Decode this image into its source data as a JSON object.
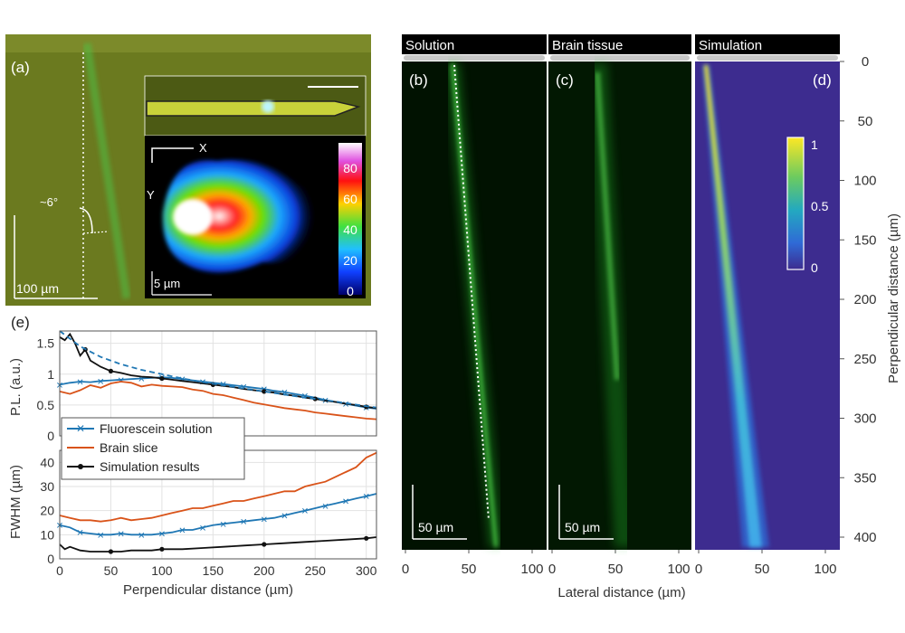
{
  "panel_a": {
    "label": "(a)",
    "angle_label": "~6°",
    "scale_label": "100 µm",
    "inset": {
      "x_label": "X",
      "y_label": "Y",
      "scale_label": "5 µm",
      "colorbar_ticks": [
        "80",
        "60",
        "40",
        "20",
        "0"
      ]
    }
  },
  "panels_bcd": {
    "headers": [
      "Solution",
      "Brain tissue",
      "Simulation"
    ],
    "labels": [
      "(b)",
      "(c)",
      "(d)"
    ],
    "scale_label_b": "50 µm",
    "scale_label_c": "50 µm",
    "colorbar_ticks": [
      "1",
      "0.5",
      "0"
    ],
    "x_ticks": [
      "0",
      "50",
      "100"
    ],
    "y_ticks": [
      "0",
      "50",
      "100",
      "150",
      "200",
      "250",
      "300",
      "350",
      "400"
    ],
    "xlabel": "Lateral distance (µm)",
    "ylabel": "Perpendicular distance (µm)",
    "colors": {
      "green": "#27c22d",
      "sim_bg": "#3d2c8f",
      "beam": "#3fa8e8"
    }
  },
  "chart_data": {
    "label": "(e)",
    "type": "line",
    "xlabel": "Perpendicular distance (µm)",
    "xlim": [
      0,
      310
    ],
    "x_ticks": [
      "0",
      "50",
      "100",
      "150",
      "200",
      "250",
      "300"
    ],
    "top": {
      "ylabel": "P.L. (a.u.)",
      "ylim": [
        0,
        1.7
      ],
      "y_ticks": [
        "0",
        "0.5",
        "1",
        "1.5"
      ],
      "series": [
        {
          "name": "Fluorescein solution",
          "color": "#1f77b4",
          "x": [
            0,
            10,
            20,
            30,
            40,
            50,
            60,
            70,
            80,
            90,
            100,
            110,
            120,
            130,
            140,
            150,
            160,
            170,
            180,
            190,
            200,
            210,
            220,
            230,
            240,
            250,
            260,
            270,
            280,
            290,
            300,
            310
          ],
          "y": [
            0.83,
            0.86,
            0.88,
            0.87,
            0.89,
            0.9,
            0.91,
            0.92,
            0.93,
            0.94,
            0.95,
            0.94,
            0.92,
            0.9,
            0.88,
            0.86,
            0.84,
            0.82,
            0.8,
            0.78,
            0.76,
            0.73,
            0.71,
            0.68,
            0.65,
            0.62,
            0.58,
            0.55,
            0.52,
            0.49,
            0.46,
            0.44
          ]
        },
        {
          "name": "Brain slice",
          "color": "#d95319",
          "x": [
            0,
            10,
            20,
            30,
            40,
            50,
            60,
            70,
            80,
            90,
            100,
            110,
            120,
            130,
            140,
            150,
            160,
            170,
            180,
            190,
            200,
            210,
            220,
            230,
            240,
            250,
            260,
            270,
            280,
            290,
            300,
            310
          ],
          "y": [
            0.72,
            0.68,
            0.74,
            0.82,
            0.78,
            0.85,
            0.88,
            0.86,
            0.8,
            0.83,
            0.81,
            0.8,
            0.79,
            0.75,
            0.73,
            0.68,
            0.66,
            0.62,
            0.58,
            0.54,
            0.51,
            0.48,
            0.45,
            0.43,
            0.41,
            0.38,
            0.36,
            0.34,
            0.32,
            0.3,
            0.28,
            0.27
          ]
        },
        {
          "name": "Simulation results",
          "color": "#111111",
          "x": [
            0,
            5,
            10,
            15,
            20,
            25,
            30,
            40,
            50,
            60,
            70,
            80,
            90,
            100,
            110,
            120,
            130,
            140,
            150,
            160,
            170,
            180,
            190,
            200,
            210,
            220,
            230,
            240,
            250,
            260,
            270,
            280,
            290,
            300,
            310
          ],
          "y": [
            1.6,
            1.55,
            1.65,
            1.5,
            1.3,
            1.4,
            1.22,
            1.12,
            1.05,
            1.02,
            0.98,
            0.96,
            0.95,
            0.93,
            0.91,
            0.89,
            0.87,
            0.85,
            0.83,
            0.81,
            0.79,
            0.76,
            0.74,
            0.72,
            0.7,
            0.67,
            0.65,
            0.62,
            0.6,
            0.57,
            0.55,
            0.52,
            0.5,
            0.47,
            0.45
          ]
        },
        {
          "name": "",
          "color": "#1f77b4",
          "dashed": true,
          "x": [
            0,
            20,
            40,
            60,
            80,
            100,
            120,
            140,
            160,
            180,
            200,
            220,
            240,
            260,
            280,
            300,
            310
          ],
          "y": [
            1.7,
            1.45,
            1.28,
            1.16,
            1.07,
            1.0,
            0.93,
            0.87,
            0.82,
            0.77,
            0.72,
            0.67,
            0.62,
            0.58,
            0.53,
            0.48,
            0.46
          ]
        }
      ]
    },
    "bottom": {
      "ylabel": "FWHM (µm)",
      "ylim": [
        0,
        45
      ],
      "y_ticks": [
        "0",
        "10",
        "20",
        "30",
        "40"
      ],
      "series": [
        {
          "name": "Fluorescein solution",
          "color": "#1f77b4",
          "x": [
            0,
            10,
            20,
            30,
            40,
            50,
            60,
            70,
            80,
            90,
            100,
            110,
            120,
            130,
            140,
            150,
            160,
            170,
            180,
            190,
            200,
            210,
            220,
            230,
            240,
            250,
            260,
            270,
            280,
            290,
            300,
            310
          ],
          "y": [
            14,
            13,
            11,
            10.5,
            10,
            10,
            10.5,
            10,
            10,
            10,
            10.5,
            11,
            12,
            12,
            13,
            14,
            14.5,
            15,
            15.5,
            16,
            16.5,
            17,
            18,
            19,
            20,
            21,
            22,
            23,
            24,
            25,
            26,
            27
          ]
        },
        {
          "name": "Brain slice",
          "color": "#d95319",
          "x": [
            0,
            10,
            20,
            30,
            40,
            50,
            60,
            70,
            80,
            90,
            100,
            110,
            120,
            130,
            140,
            150,
            160,
            170,
            180,
            190,
            200,
            210,
            220,
            230,
            240,
            250,
            260,
            270,
            280,
            290,
            300,
            310
          ],
          "y": [
            18,
            17,
            16,
            16,
            15.5,
            16,
            17,
            16,
            16.5,
            17,
            18,
            19,
            20,
            21,
            21,
            22,
            23,
            24,
            24,
            25,
            26,
            27,
            28,
            28,
            30,
            31,
            32,
            34,
            36,
            38,
            42,
            44
          ]
        },
        {
          "name": "Simulation results",
          "color": "#111111",
          "x": [
            0,
            5,
            10,
            20,
            30,
            40,
            50,
            60,
            70,
            80,
            90,
            100,
            120,
            140,
            160,
            180,
            200,
            220,
            240,
            260,
            280,
            300,
            310
          ],
          "y": [
            6,
            4,
            5,
            3.5,
            3,
            3,
            3,
            3,
            3.5,
            3.5,
            3.5,
            4,
            4,
            4.5,
            5,
            5.5,
            6,
            6.5,
            7,
            7.5,
            8,
            8.5,
            9
          ]
        }
      ]
    }
  }
}
